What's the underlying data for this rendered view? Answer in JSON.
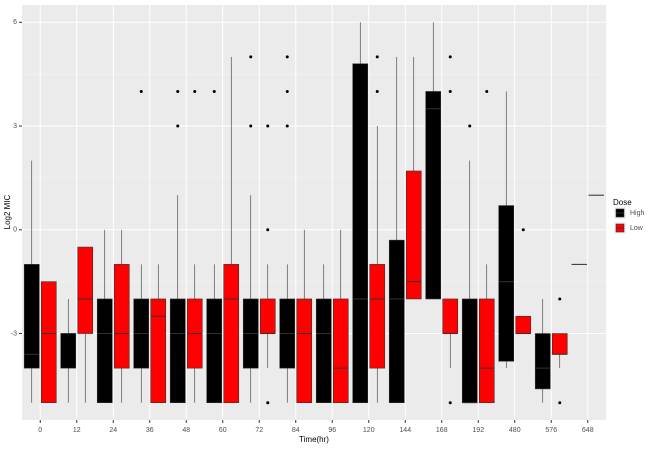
{
  "chart_data": {
    "type": "box",
    "x_label": "Time(hr)",
    "y_label": "Log2 MIC",
    "legend_title": "Dose",
    "categories": [
      "0",
      "12",
      "24",
      "36",
      "48",
      "60",
      "72",
      "84",
      "96",
      "120",
      "144",
      "168",
      "192",
      "480",
      "576",
      "648"
    ],
    "ylim": [
      -5.5,
      6.5
    ],
    "yticks": [
      -3,
      0,
      3,
      6
    ],
    "grid": true,
    "legend_position": "right",
    "series": [
      {
        "name": "High",
        "color": "#000000",
        "min": [
          -5,
          -5,
          -5,
          -5,
          -5,
          -5,
          -5,
          -5,
          -5,
          -5,
          -5,
          -2,
          -5,
          -4,
          -5,
          -1
        ],
        "q1": [
          -4,
          -4,
          -5,
          -4,
          -5,
          -5,
          -4,
          -4,
          -5,
          -5,
          -5,
          -2,
          -5,
          -3.8,
          -4.6,
          -1
        ],
        "median": [
          -3.6,
          -3,
          -3,
          -3,
          -3,
          -3,
          -3,
          -3,
          -3,
          -2,
          -2,
          3.5,
          -5,
          -1.5,
          -4,
          -1
        ],
        "q3": [
          -1,
          -3,
          -2,
          -2,
          -2,
          -2,
          -2,
          -2,
          -2,
          4.8,
          -0.3,
          4,
          -2,
          0.7,
          -3,
          -1
        ],
        "max": [
          2,
          -2,
          0,
          -1,
          1,
          -1,
          1,
          -1,
          -1,
          6,
          5,
          6,
          2,
          4,
          -2,
          -1
        ],
        "outliers": [
          [],
          [],
          [],
          [
            4
          ],
          [
            3,
            4
          ],
          [
            4
          ],
          [
            5,
            3
          ],
          [
            5,
            4,
            3
          ],
          [],
          [],
          [],
          [],
          [
            3
          ],
          [],
          [],
          []
        ]
      },
      {
        "name": "Low",
        "color": "#ff0000",
        "min": [
          -5,
          -5,
          -5,
          -5,
          -5,
          -5,
          -4,
          -5,
          -5,
          -5,
          -2,
          -4,
          -5,
          -3,
          -4,
          1
        ],
        "q1": [
          -5,
          -3,
          -4,
          -5,
          -4,
          -5,
          -3,
          -5,
          -5,
          -4,
          -2,
          -3,
          -5,
          -3,
          -3.6,
          1
        ],
        "median": [
          -3,
          -2,
          -3,
          -2.5,
          -3,
          -2,
          -3,
          -3,
          -4,
          -2,
          -1.5,
          -3,
          -4,
          -3,
          -3.6,
          1
        ],
        "q3": [
          -1.5,
          -0.5,
          -1,
          -2,
          -2,
          -1,
          -2,
          -2,
          -2,
          -1,
          1.7,
          -2,
          -2,
          -2.5,
          -3,
          1
        ],
        "max": [
          -1.5,
          -0.5,
          0,
          -1,
          -1,
          5,
          -1,
          0,
          0,
          3,
          5,
          -2,
          -1,
          -2.5,
          -3,
          1
        ],
        "outliers": [
          [],
          [],
          [],
          [],
          [
            4
          ],
          [],
          [
            0,
            -5,
            3
          ],
          [],
          [],
          [
            5,
            4
          ],
          [],
          [
            5,
            4,
            -5
          ],
          [
            4
          ],
          [
            0
          ],
          [
            -2,
            -5
          ],
          []
        ]
      }
    ]
  }
}
